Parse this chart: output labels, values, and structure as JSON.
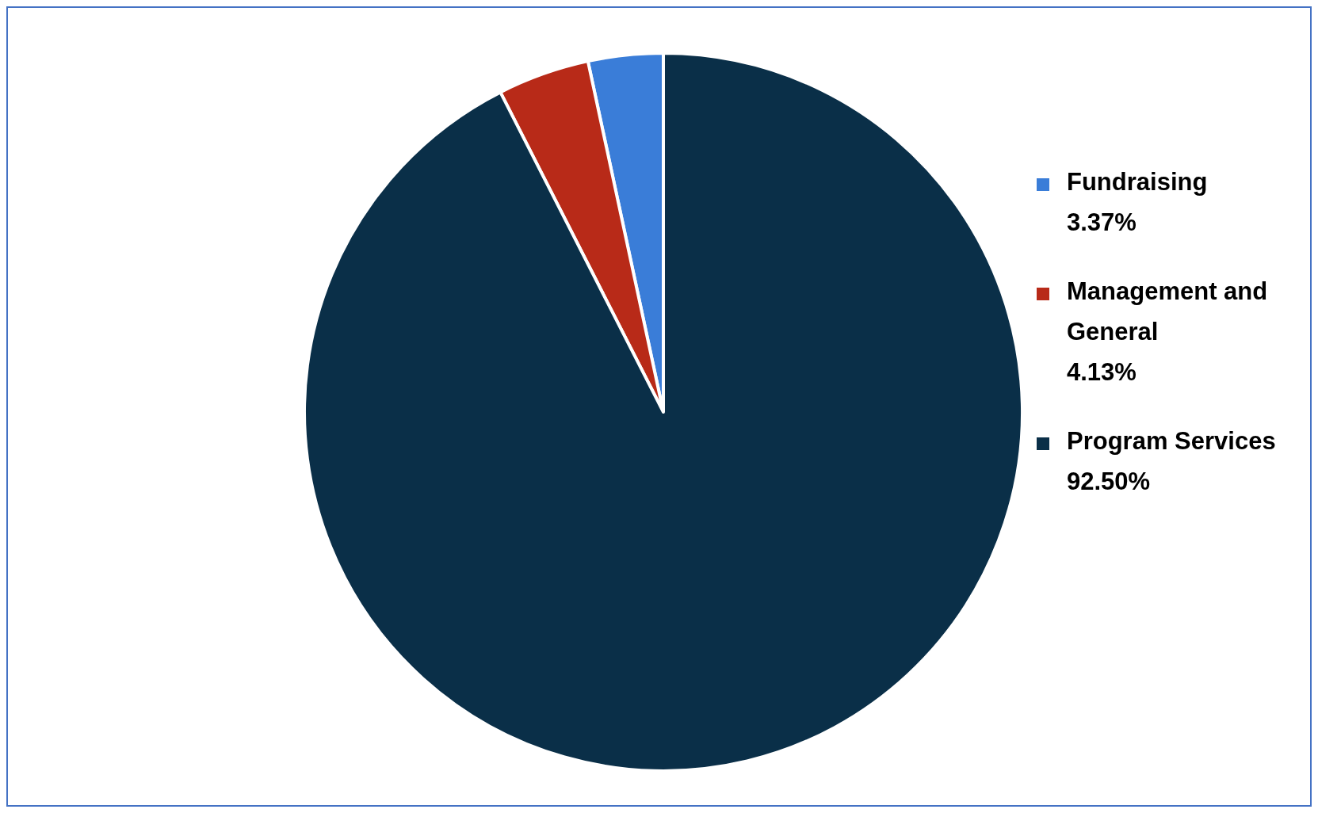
{
  "chart_data": {
    "type": "pie",
    "categories": [
      "Fundraising",
      "Management and General",
      "Program Services"
    ],
    "values": [
      3.37,
      4.13,
      92.5
    ],
    "colors": [
      "#3a7dd8",
      "#b82a18",
      "#0a2f48"
    ],
    "value_labels": [
      "3.37%",
      "4.13%",
      "92.50%"
    ],
    "legend": "right"
  }
}
